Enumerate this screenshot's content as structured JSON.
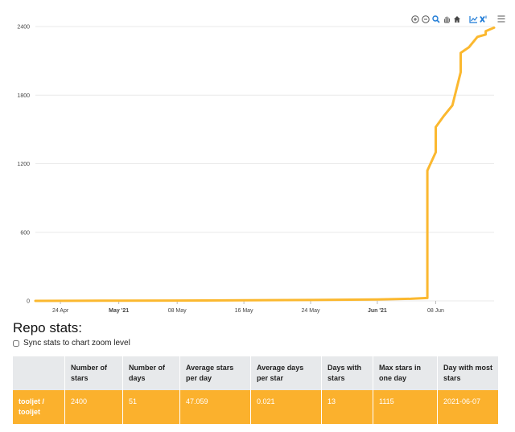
{
  "toolbar": {
    "icons": [
      "zoom-in-icon",
      "zoom-out-icon",
      "zoom-magnifier-icon",
      "pan-hand-icon",
      "home-reset-icon",
      "selection-zoom-icon",
      "reset-x-icon",
      "menu-icon"
    ]
  },
  "colors": {
    "series": "#fbb82f",
    "row_bg": "#fbb12d",
    "header_bg": "#e7e9eb",
    "grid": "#e9e9e9",
    "toolbar_blue": "#1f7bd6"
  },
  "chart_data": {
    "type": "line",
    "title": "",
    "xlabel": "",
    "ylabel": "",
    "ylim": [
      0,
      2400
    ],
    "xlim": [
      "2021-04-21",
      "2021-06-15"
    ],
    "yticks": [
      "0",
      "600",
      "1200",
      "1800",
      "2400"
    ],
    "xticks": [
      {
        "date": "2021-04-24",
        "label": "24 Apr",
        "bold": false
      },
      {
        "date": "2021-05-01",
        "label": "May '21",
        "bold": true
      },
      {
        "date": "2021-05-08",
        "label": "08 May",
        "bold": false
      },
      {
        "date": "2021-05-16",
        "label": "16 May",
        "bold": false
      },
      {
        "date": "2021-05-24",
        "label": "24 May",
        "bold": false
      },
      {
        "date": "2021-06-01",
        "label": "Jun '21",
        "bold": true
      },
      {
        "date": "2021-06-08",
        "label": "08 Jun",
        "bold": false
      }
    ],
    "grid": true,
    "series": [
      {
        "x": [
          "2021-04-21",
          "2021-04-26",
          "2021-05-01",
          "2021-05-08",
          "2021-05-16",
          "2021-05-24",
          "2021-06-01",
          "2021-06-05",
          "2021-06-06",
          "2021-06-07",
          "2021-06-07",
          "2021-06-07",
          "2021-06-08",
          "2021-06-08",
          "2021-06-08",
          "2021-06-09",
          "2021-06-10",
          "2021-06-11",
          "2021-06-11",
          "2021-06-12",
          "2021-06-13",
          "2021-06-14",
          "2021-06-14",
          "2021-06-15"
        ],
        "values": [
          0,
          1,
          2,
          3,
          5,
          8,
          12,
          18,
          22,
          25,
          700,
          1140,
          1300,
          1400,
          1520,
          1620,
          1710,
          2000,
          2170,
          2220,
          2310,
          2330,
          2360,
          2390
        ]
      }
    ]
  },
  "stats": {
    "title": "Repo stats:",
    "sync_label": "Sync stats to chart zoom level",
    "sync_checked": false,
    "headers": [
      "",
      "Number of stars",
      "Number of days",
      "Average stars per day",
      "Average days per star",
      "Days with stars",
      "Max stars in one day",
      "Day with most stars"
    ],
    "rows": [
      [
        "tooljet / tooljet",
        "2400",
        "51",
        "47.059",
        "0.021",
        "13",
        "1115",
        "2021-06-07"
      ]
    ]
  }
}
